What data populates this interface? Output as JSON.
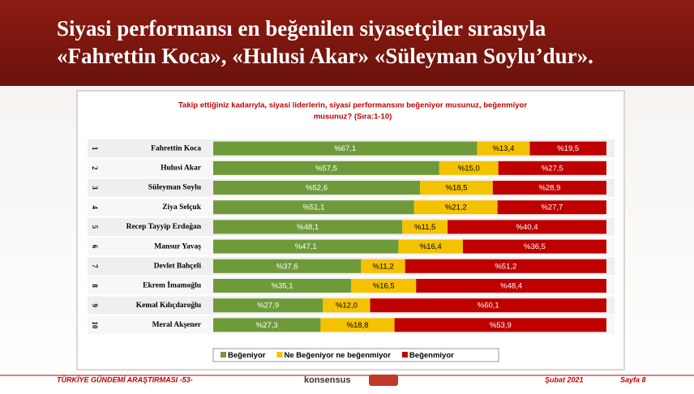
{
  "slide_title": [
    "Siyasi performansı en beğenilen siyasetçiler sırasıyla",
    "«Fahrettin Koca», «Hulusi Akar» «Süleyman Soylu’dur»."
  ],
  "chart_data": {
    "type": "stacked-bar-horizontal",
    "title": [
      "Takip ettiğiniz kadarıyla, siyasi liderlerin, siyasi performansını beğeniyor musunuz, beğenmiyor",
      "musunuz? (Sıra:1-10)"
    ],
    "ranks": [
      "1",
      "2",
      "3",
      "4",
      "5",
      "6",
      "7",
      "8",
      "9",
      "10"
    ],
    "categories": [
      "Fahrettin Koca",
      "Hulusi Akar",
      "Süleyman Soylu",
      "Ziya Selçuk",
      "Recep Tayyip Erdoğan",
      "Mansur Yavaş",
      "Devlet Bahçeli",
      "Ekrem İmamoğlu",
      "Kemal Kılıçdaroğlu",
      "Meral Akşener"
    ],
    "xlim": [
      0,
      100
    ],
    "series": [
      {
        "name": "Beğeniyor",
        "color": "#6f9a3a",
        "values": [
          67.1,
          57.5,
          52.6,
          51.1,
          48.1,
          47.1,
          37.6,
          35.1,
          27.9,
          27.3
        ],
        "value_labels": [
          "%67,1",
          "%57,5",
          "%52,6",
          "%51,1",
          "%48,1",
          "%47,1",
          "%37,6",
          "%35,1",
          "%27,9",
          "%27,3"
        ]
      },
      {
        "name": "Ne Beğeniyor ne beğenmiyor",
        "color": "#f5c200",
        "values": [
          13.4,
          15.0,
          18.5,
          21.2,
          11.5,
          16.4,
          11.2,
          16.5,
          12.0,
          18.8
        ],
        "value_labels": [
          "%13,4",
          "%15,0",
          "%18,5",
          "%21,2",
          "%11,5",
          "%16,4",
          "%11,2",
          "%16,5",
          "%12,0",
          "%18,8"
        ]
      },
      {
        "name": "Beğenmiyor",
        "color": "#c00000",
        "values": [
          19.5,
          27.5,
          28.9,
          27.7,
          40.4,
          36.5,
          51.2,
          48.4,
          60.1,
          53.9
        ],
        "value_labels": [
          "%19,5",
          "%27,5",
          "%28,9",
          "%27,7",
          "%40,4",
          "%36,5",
          "%51,2",
          "%48,4",
          "%60,1",
          "%53,9"
        ]
      }
    ]
  },
  "footer": {
    "left": "TÜRKİYE GÜNDEMİ ARAŞTIRMASI -53-",
    "logo": "konsensus",
    "date": "Şubat 2021",
    "page": "Sayfa 8"
  }
}
